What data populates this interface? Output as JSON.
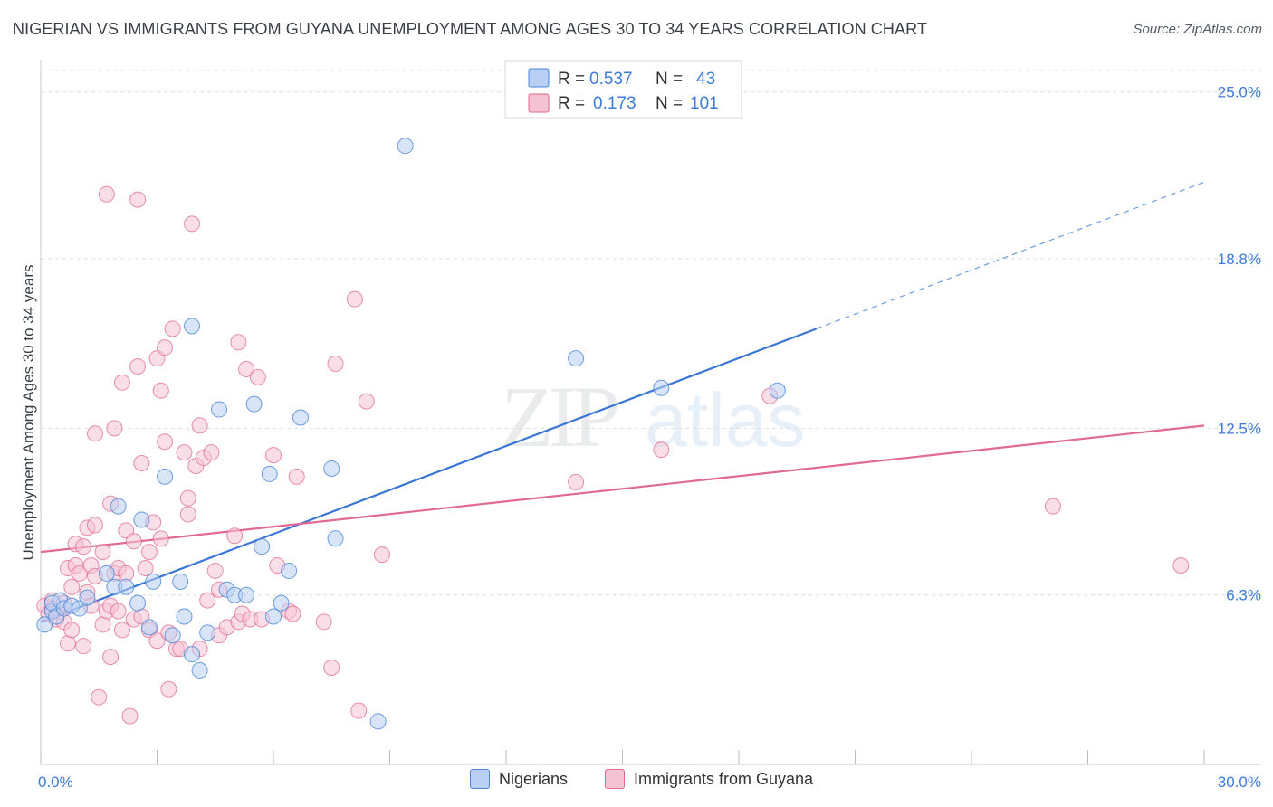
{
  "header": {
    "title": "NIGERIAN VS IMMIGRANTS FROM GUYANA UNEMPLOYMENT AMONG AGES 30 TO 34 YEARS CORRELATION CHART",
    "source": "Source: ZipAtlas.com"
  },
  "watermark": {
    "zip": "ZIP",
    "atlas": "atlas"
  },
  "colors": {
    "blue": "#4a86d8",
    "blue_fill": "#b8cff3",
    "pink": "#e06a93",
    "pink_fill": "#f5c2d3",
    "accent_text": "#3d7bd6"
  },
  "legend": {
    "rows": [
      {
        "r_label": "R =",
        "r_value": "0.537",
        "n_label": "N =",
        "n_value": "43"
      },
      {
        "r_label": "R =",
        "r_value": "0.173",
        "n_label": "N =",
        "n_value": "101"
      }
    ]
  },
  "bottom_legend": {
    "series1": "Nigerians",
    "series2": "Immigrants from Guyana"
  },
  "chart_data": {
    "type": "scatter",
    "title": "NIGERIAN VS IMMIGRANTS FROM GUYANA UNEMPLOYMENT AMONG AGES 30 TO 34 YEARS CORRELATION CHART",
    "xlabel": "",
    "ylabel": "Unemployment Among Ages 30 to 34 years",
    "xlim": [
      0,
      30
    ],
    "ylim": [
      0,
      26
    ],
    "x_tick_labels": [
      "0.0%",
      "30.0%"
    ],
    "y_ticks": [
      6.3,
      12.5,
      18.8,
      25.0
    ],
    "y_tick_labels": [
      "6.3%",
      "12.5%",
      "18.8%",
      "25.0%"
    ],
    "grid": true,
    "legend_position": "top-center",
    "series": [
      {
        "name": "Nigerians",
        "r": 0.537,
        "n": 43,
        "trend": {
          "x0": 0.0,
          "y0": 5.3,
          "x_solid_end": 20.0,
          "x_dash_end": 30.0,
          "slope": 0.545
        },
        "points": [
          [
            0.1,
            5.2
          ],
          [
            0.3,
            5.7
          ],
          [
            0.3,
            6.0
          ],
          [
            0.4,
            5.5
          ],
          [
            0.5,
            6.1
          ],
          [
            0.6,
            5.8
          ],
          [
            0.8,
            5.9
          ],
          [
            1.0,
            5.8
          ],
          [
            1.2,
            6.2
          ],
          [
            1.7,
            7.1
          ],
          [
            1.9,
            6.6
          ],
          [
            2.0,
            9.6
          ],
          [
            2.2,
            6.6
          ],
          [
            2.5,
            6.0
          ],
          [
            2.6,
            9.1
          ],
          [
            2.8,
            5.1
          ],
          [
            2.9,
            6.8
          ],
          [
            3.2,
            10.7
          ],
          [
            3.4,
            4.8
          ],
          [
            3.6,
            6.8
          ],
          [
            3.7,
            5.5
          ],
          [
            3.9,
            4.1
          ],
          [
            3.9,
            16.3
          ],
          [
            4.1,
            3.5
          ],
          [
            4.3,
            4.9
          ],
          [
            4.6,
            13.2
          ],
          [
            4.8,
            6.5
          ],
          [
            5.0,
            6.3
          ],
          [
            5.3,
            6.3
          ],
          [
            5.5,
            13.4
          ],
          [
            5.7,
            8.1
          ],
          [
            5.9,
            10.8
          ],
          [
            6.0,
            5.5
          ],
          [
            6.2,
            6.0
          ],
          [
            6.4,
            7.2
          ],
          [
            6.7,
            12.9
          ],
          [
            7.5,
            11.0
          ],
          [
            7.6,
            8.4
          ],
          [
            8.7,
            1.6
          ],
          [
            9.4,
            23.0
          ],
          [
            13.8,
            15.1
          ],
          [
            16.0,
            14.0
          ],
          [
            19.0,
            13.9
          ]
        ]
      },
      {
        "name": "Immigrants from Guyana",
        "r": 0.173,
        "n": 101,
        "trend": {
          "x0": 0.0,
          "y0": 7.9,
          "x_end": 30.0,
          "y_end": 12.6
        },
        "points": [
          [
            0.1,
            5.9
          ],
          [
            0.2,
            5.6
          ],
          [
            0.3,
            5.8
          ],
          [
            0.3,
            6.1
          ],
          [
            0.4,
            5.4
          ],
          [
            0.5,
            5.7
          ],
          [
            0.6,
            6.0
          ],
          [
            0.6,
            5.3
          ],
          [
            0.7,
            4.5
          ],
          [
            0.7,
            7.3
          ],
          [
            0.8,
            5.0
          ],
          [
            0.8,
            6.6
          ],
          [
            0.9,
            7.4
          ],
          [
            0.9,
            8.2
          ],
          [
            1.0,
            7.1
          ],
          [
            1.1,
            8.1
          ],
          [
            1.1,
            4.4
          ],
          [
            1.2,
            8.8
          ],
          [
            1.2,
            6.4
          ],
          [
            1.3,
            7.4
          ],
          [
            1.3,
            5.9
          ],
          [
            1.4,
            7.0
          ],
          [
            1.4,
            8.9
          ],
          [
            1.4,
            12.3
          ],
          [
            1.5,
            2.5
          ],
          [
            1.6,
            7.9
          ],
          [
            1.6,
            5.2
          ],
          [
            1.7,
            5.7
          ],
          [
            1.7,
            21.2
          ],
          [
            1.8,
            5.9
          ],
          [
            1.8,
            9.7
          ],
          [
            1.8,
            4.0
          ],
          [
            1.9,
            12.5
          ],
          [
            1.9,
            7.1
          ],
          [
            2.0,
            7.3
          ],
          [
            2.0,
            5.7
          ],
          [
            2.1,
            5.0
          ],
          [
            2.1,
            14.2
          ],
          [
            2.2,
            7.1
          ],
          [
            2.2,
            8.7
          ],
          [
            2.3,
            1.8
          ],
          [
            2.4,
            8.3
          ],
          [
            2.4,
            5.4
          ],
          [
            2.5,
            14.8
          ],
          [
            2.5,
            21.0
          ],
          [
            2.6,
            11.2
          ],
          [
            2.6,
            5.5
          ],
          [
            2.7,
            7.3
          ],
          [
            2.8,
            7.9
          ],
          [
            2.8,
            5.0
          ],
          [
            2.9,
            9.0
          ],
          [
            3.0,
            15.1
          ],
          [
            3.0,
            4.6
          ],
          [
            3.1,
            13.9
          ],
          [
            3.1,
            8.4
          ],
          [
            3.2,
            15.5
          ],
          [
            3.2,
            12.0
          ],
          [
            3.3,
            2.8
          ],
          [
            3.3,
            4.9
          ],
          [
            3.4,
            16.2
          ],
          [
            3.5,
            4.3
          ],
          [
            3.6,
            4.3
          ],
          [
            3.7,
            11.6
          ],
          [
            3.8,
            9.3
          ],
          [
            3.8,
            9.9
          ],
          [
            3.9,
            20.1
          ],
          [
            4.0,
            11.1
          ],
          [
            4.1,
            4.3
          ],
          [
            4.1,
            12.6
          ],
          [
            4.2,
            11.4
          ],
          [
            4.3,
            6.1
          ],
          [
            4.4,
            11.6
          ],
          [
            4.5,
            7.2
          ],
          [
            4.6,
            4.8
          ],
          [
            4.6,
            6.5
          ],
          [
            4.8,
            5.1
          ],
          [
            5.0,
            8.5
          ],
          [
            5.1,
            15.7
          ],
          [
            5.1,
            5.3
          ],
          [
            5.2,
            5.6
          ],
          [
            5.3,
            14.7
          ],
          [
            5.4,
            5.4
          ],
          [
            5.6,
            14.4
          ],
          [
            5.7,
            5.4
          ],
          [
            6.0,
            11.5
          ],
          [
            6.1,
            7.4
          ],
          [
            6.4,
            5.7
          ],
          [
            6.5,
            5.6
          ],
          [
            6.6,
            10.7
          ],
          [
            7.3,
            5.3
          ],
          [
            7.5,
            3.6
          ],
          [
            7.6,
            14.9
          ],
          [
            8.1,
            17.3
          ],
          [
            8.2,
            2.0
          ],
          [
            8.4,
            13.5
          ],
          [
            8.8,
            7.8
          ],
          [
            13.8,
            10.5
          ],
          [
            16.0,
            11.7
          ],
          [
            18.8,
            13.7
          ],
          [
            26.1,
            9.6
          ],
          [
            29.4,
            7.4
          ]
        ]
      }
    ]
  }
}
